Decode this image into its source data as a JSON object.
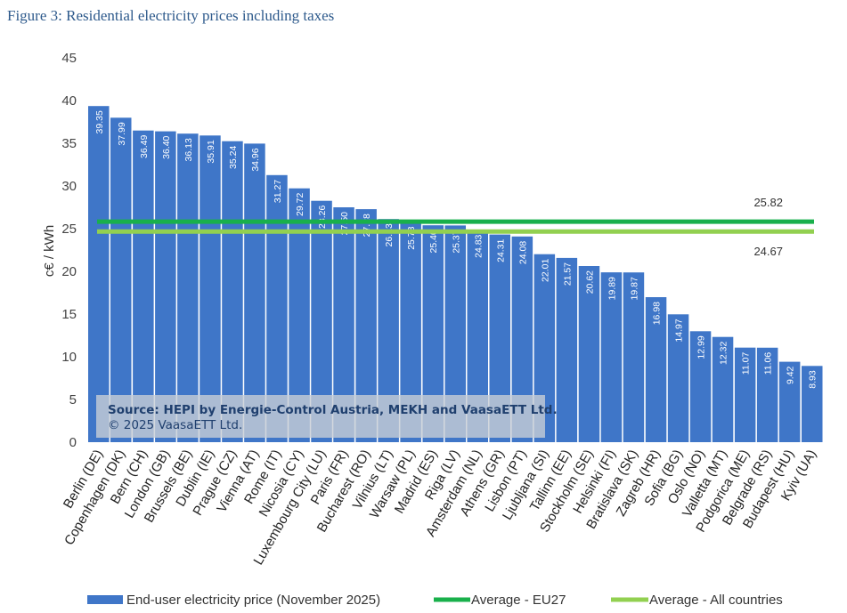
{
  "figure_title": "Figure 3: Residential electricity prices including taxes",
  "source_line1": "Source: HEPI by Energie-Control Austria, MEKH and VaasaETT Ltd.",
  "source_line2": "© 2025 VaasaETT Ltd.",
  "colors": {
    "bar": "#3f76c8",
    "eu27": "#19b04b",
    "all": "#92d050",
    "title": "#2e5a8c"
  },
  "chart_data": {
    "type": "bar",
    "title": "",
    "xlabel": "",
    "ylabel": "c€ / kWh",
    "ylim": [
      0,
      45
    ],
    "yticks": [
      0,
      5,
      10,
      15,
      20,
      25,
      30,
      35,
      40,
      45
    ],
    "categories": [
      "Berlin (DE)",
      "Copenhagen (DK)",
      "Bern (CH)",
      "London (GB)",
      "Brussels (BE)",
      "Dublin (IE)",
      "Prague (CZ)",
      "Vienna (AT)",
      "Rome (IT)",
      "Nicosia (CY)",
      "Luxembourg City (LU)",
      "Paris (FR)",
      "Bucharest (RO)",
      "Vilnius (LT)",
      "Warsaw (PL)",
      "Madrid (ES)",
      "Riga (LV)",
      "Amsterdam (NL)",
      "Athens (GR)",
      "Lisbon (PT)",
      "Ljubljana (SI)",
      "Tallinn (EE)",
      "Stockholm (SE)",
      "Helsinki (FI)",
      "Bratislava (SK)",
      "Zagreb (HR)",
      "Sofia (BG)",
      "Oslo (NO)",
      "Valletta (MT)",
      "Podgorica (ME)",
      "Belgrade (RS)",
      "Budapest (HU)",
      "Kyiv (UA)"
    ],
    "series": [
      {
        "name": "End-user electricity price (November 2025)",
        "values": [
          39.35,
          37.99,
          36.49,
          36.4,
          36.13,
          35.91,
          35.24,
          34.96,
          31.27,
          29.72,
          28.26,
          27.5,
          27.28,
          26.13,
          25.78,
          25.4,
          25.37,
          24.83,
          24.31,
          24.08,
          22.01,
          21.57,
          20.62,
          19.89,
          19.87,
          16.98,
          14.97,
          12.99,
          12.32,
          11.07,
          11.06,
          9.42,
          8.93
        ],
        "labels": [
          "39.35",
          "37.99",
          "36.49",
          "36.40",
          "36.13",
          "35.91",
          "35.24",
          "34.96",
          "31.27",
          "29.72",
          "28.26",
          "27.50",
          "27.28",
          "26.13",
          "25.78",
          "25.40",
          "25.37",
          "24.83",
          "24.31",
          "24.08",
          "22.01",
          "21.57",
          "20.62",
          "19.89",
          "19.87",
          "16.98",
          "14.97",
          "12.99",
          "12.32",
          "11.07",
          "11.06",
          "9.42",
          "8.93"
        ]
      }
    ],
    "averages": [
      {
        "name": "Average - EU27",
        "value": 25.82,
        "label": "25.82"
      },
      {
        "name": "Average - All countries",
        "value": 24.67,
        "label": "24.67"
      }
    ],
    "legend": {
      "position": "bottom"
    },
    "grid": false
  }
}
